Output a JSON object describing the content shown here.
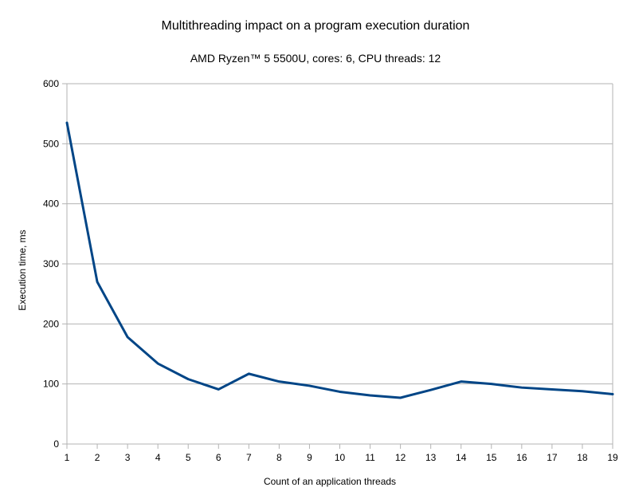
{
  "chart_data": {
    "type": "line",
    "title": "Multithreading impact on a program execution duration",
    "subtitle": "AMD Ryzen™ 5 5500U, cores: 6, CPU threads: 12",
    "xlabel": "Count  of an application threads",
    "ylabel": "Execution time, ms",
    "x": [
      1,
      2,
      3,
      4,
      5,
      6,
      7,
      8,
      9,
      10,
      11,
      12,
      13,
      14,
      15,
      16,
      17,
      18,
      19
    ],
    "series": [
      {
        "values": [
          535,
          270,
          178,
          134,
          108,
          91,
          117,
          104,
          97,
          87,
          81,
          77,
          90,
          104,
          100,
          94,
          91,
          88,
          83
        ]
      }
    ],
    "xlim": [
      1,
      19
    ],
    "ylim": [
      0,
      600
    ],
    "yticks": [
      0,
      100,
      200,
      300,
      400,
      500,
      600
    ],
    "xticks": [
      1,
      2,
      3,
      4,
      5,
      6,
      7,
      8,
      9,
      10,
      11,
      12,
      13,
      14,
      15,
      16,
      17,
      18,
      19
    ],
    "grid": true,
    "line_color": "#004586",
    "grid_color": "#b3b3b3",
    "legend": "none"
  }
}
